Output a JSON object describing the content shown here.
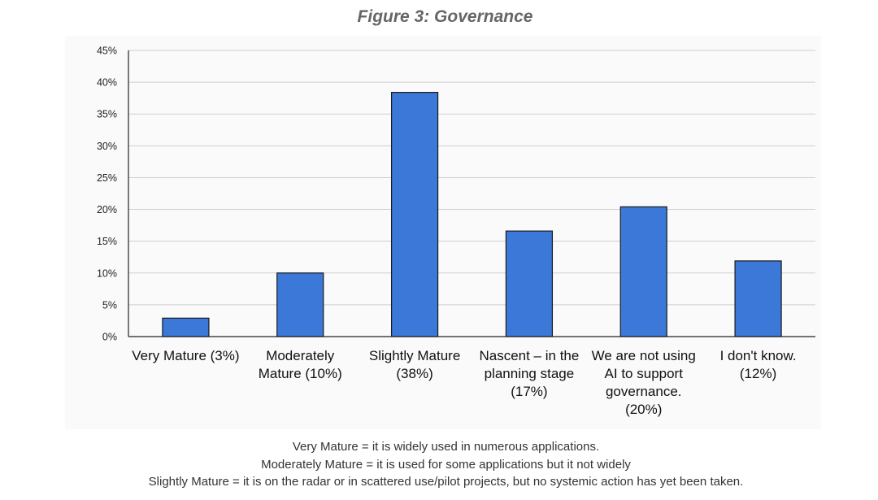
{
  "title": "Figure 3: Governance",
  "chart_data": {
    "type": "bar",
    "title": "Figure 3: Governance",
    "categories": [
      "Very Mature (3%)",
      "Moderately\nMature (10%)",
      "Slightly Mature\n(38%)",
      "Nascent – in the\nplanning stage\n(17%)",
      "We are not using\nAI to support\ngovernance.\n(20%)",
      "I don't know.\n(12%)"
    ],
    "values": [
      2.9,
      10.0,
      38.4,
      16.6,
      20.4,
      11.9
    ],
    "ylim": [
      0,
      45
    ],
    "yticks": [
      0,
      5,
      10,
      15,
      20,
      25,
      30,
      35,
      40,
      45
    ],
    "ytick_labels": [
      "0%",
      "5%",
      "10%",
      "15%",
      "20%",
      "25%",
      "30%",
      "35%",
      "40%",
      "45%"
    ],
    "xlabel": "",
    "ylabel": "",
    "grid": true,
    "bar_color": "#3c78d8",
    "bar_edge_color": "#1a1a1a",
    "legend": "none"
  },
  "footnotes": [
    "Very Mature = it is widely used in numerous applications.",
    "Moderately Mature = it is used for some applications but it not widely",
    "Slightly Mature = it is on the radar or in scattered use/pilot projects, but no systemic action has yet been taken."
  ]
}
